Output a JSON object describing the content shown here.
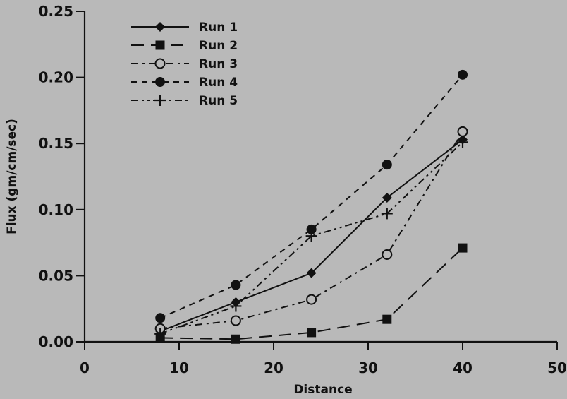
{
  "chart_data": {
    "type": "line",
    "title": "",
    "xlabel": "Distance",
    "ylabel": "Flux (gm/cm/sec)",
    "xlim": [
      0,
      50
    ],
    "ylim": [
      0,
      0.25
    ],
    "xticks": [
      "0",
      "10",
      "20",
      "30",
      "40",
      "50"
    ],
    "yticks": [
      "0.00",
      "0.05",
      "0.10",
      "0.15",
      "0.20",
      "0.25"
    ],
    "grid": false,
    "legend_position": "top-left",
    "x": [
      8,
      16,
      24,
      32,
      40
    ],
    "series": [
      {
        "name": "Run 1",
        "marker": "diamond",
        "dash": "solid",
        "values": [
          0.008,
          0.03,
          0.052,
          0.109,
          0.153
        ]
      },
      {
        "name": "Run 2",
        "marker": "square",
        "dash": "long-dash",
        "values": [
          0.003,
          0.002,
          0.007,
          0.017,
          0.071
        ]
      },
      {
        "name": "Run 3",
        "marker": "open-circle",
        "dash": "dash-dot",
        "values": [
          0.01,
          0.016,
          0.032,
          0.066,
          0.159
        ]
      },
      {
        "name": "Run 4",
        "marker": "filled-circle",
        "dash": "short-dash",
        "values": [
          0.018,
          0.043,
          0.085,
          0.134,
          0.202
        ]
      },
      {
        "name": "Run 5",
        "marker": "plus",
        "dash": "dash-dot-dot",
        "values": [
          0.006,
          0.027,
          0.08,
          0.097,
          0.151
        ]
      }
    ]
  }
}
